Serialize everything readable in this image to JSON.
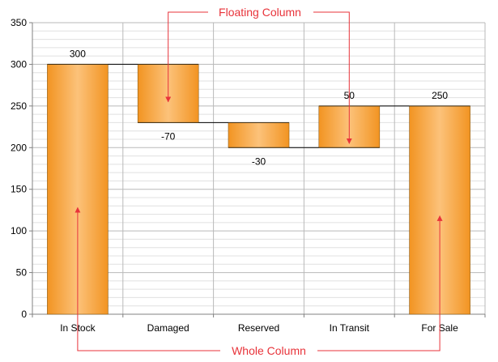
{
  "chart_data": {
    "type": "bar",
    "subtype": "waterfall",
    "title": "",
    "xlabel": "",
    "ylabel": "",
    "ylim": [
      0,
      350
    ],
    "yticks": [
      0,
      50,
      100,
      150,
      200,
      250,
      300,
      350
    ],
    "grid": true,
    "categories": [
      "In Stock",
      "Damaged",
      "Reserved",
      "In Transit",
      "For Sale"
    ],
    "values": [
      300,
      -70,
      -30,
      50,
      250
    ],
    "data_labels": [
      "300",
      "-70",
      "-30",
      "50",
      "250"
    ],
    "kinds": [
      "whole",
      "floating",
      "floating",
      "floating",
      "whole"
    ],
    "annotations": {
      "floating_label": "Floating Column",
      "whole_label": "Whole Column"
    },
    "colors": {
      "bar_dark": "#f29422",
      "bar_light": "#fcc27a",
      "bar_border": "#8a5a14",
      "annotation": "#e8333a",
      "grid_major": "#b9b9b9",
      "grid_minor": "#e0e0e0",
      "connector": "#000000"
    }
  }
}
